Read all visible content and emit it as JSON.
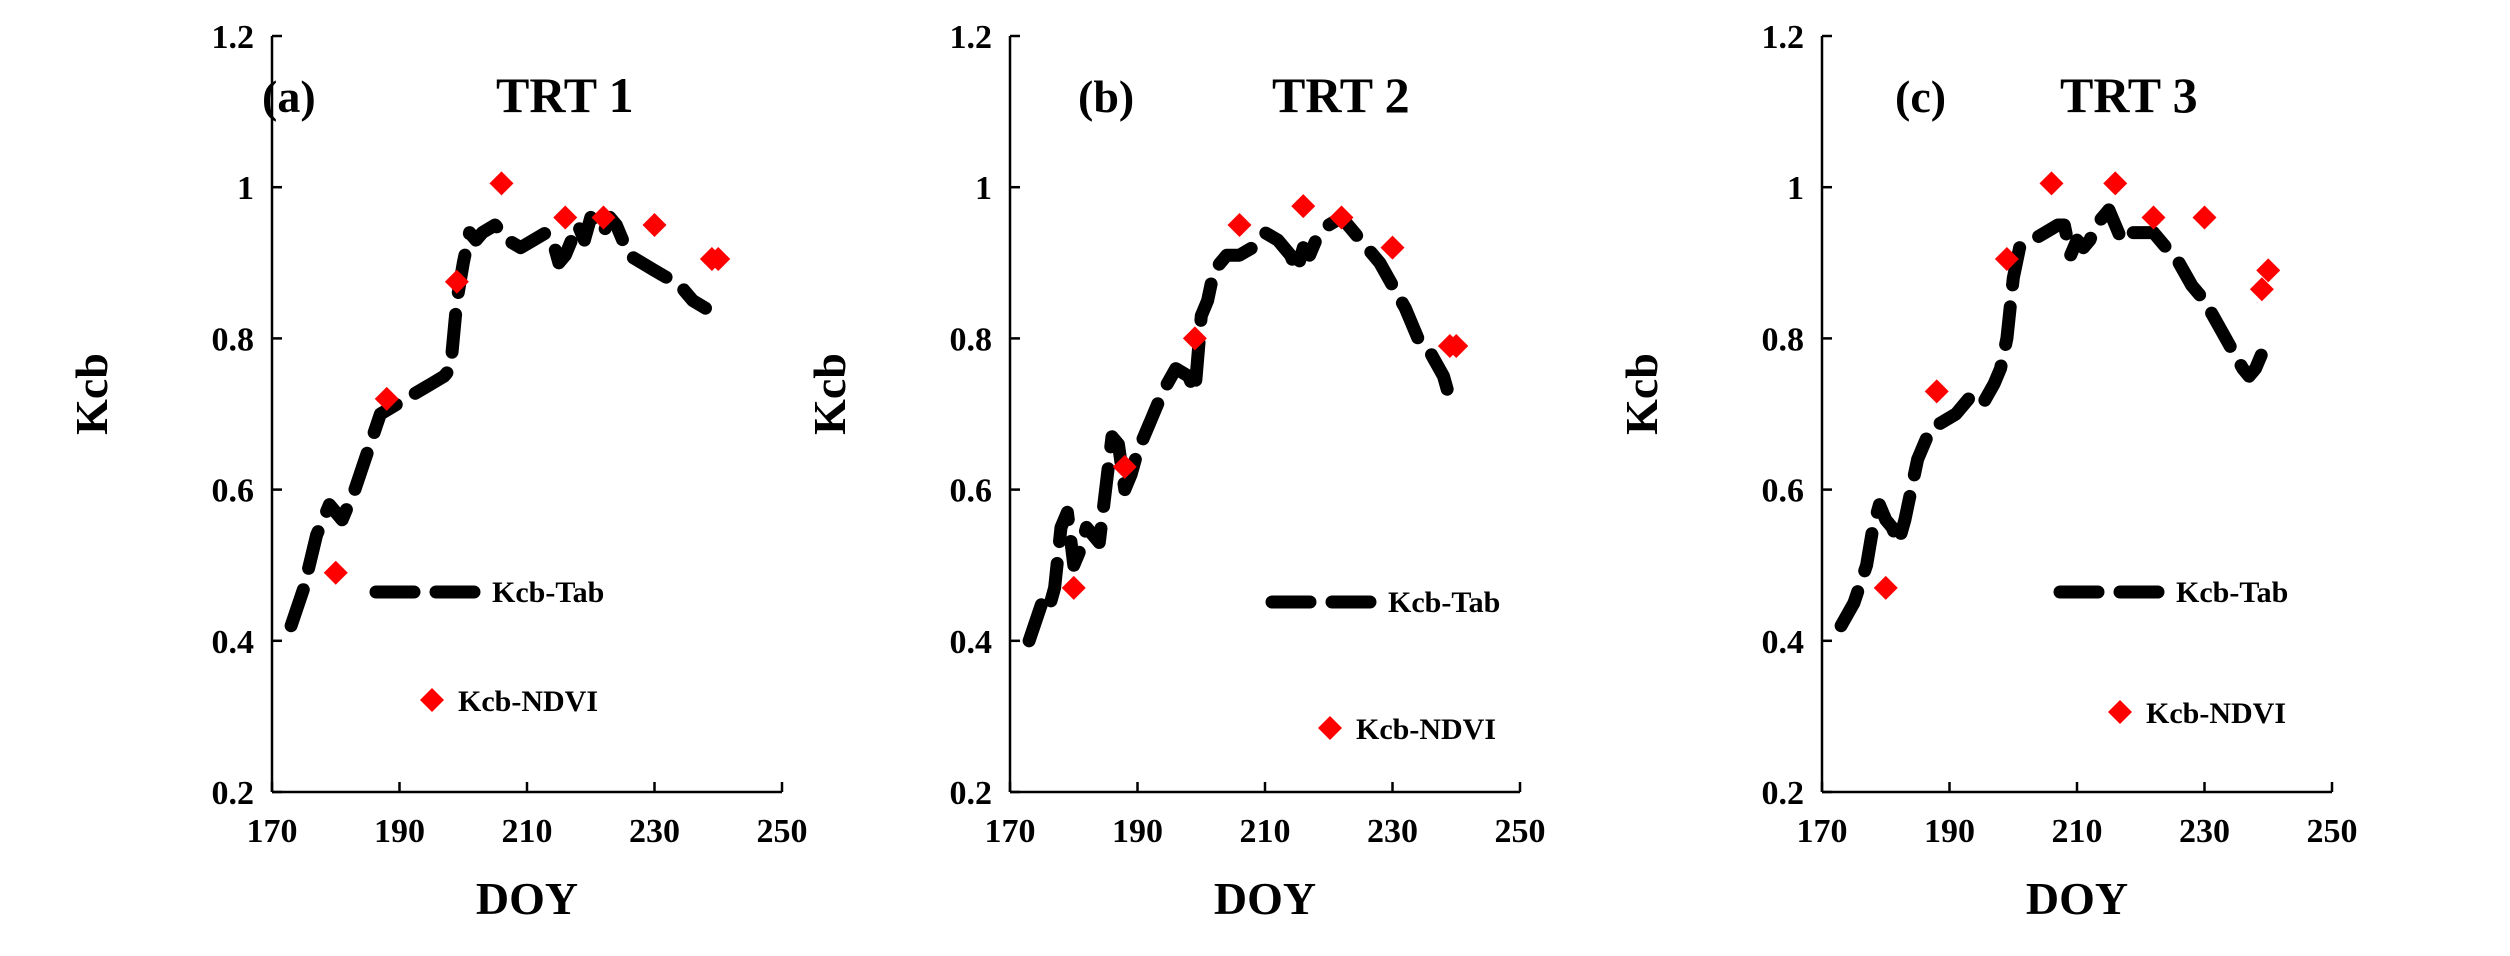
{
  "chart_data": [
    {
      "type": "line",
      "panel_label": "(a)",
      "title": "TRT 1",
      "xlabel": "DOY",
      "ylabel": "Kcb",
      "xlim": [
        170,
        250
      ],
      "ylim": [
        0.2,
        1.2
      ],
      "xticks": [
        170,
        190,
        210,
        230,
        250
      ],
      "yticks": [
        0.2,
        0.4,
        0.6,
        0.8,
        1.0,
        1.2
      ],
      "ytick_labels": [
        "0.2",
        "0.4",
        "0.6",
        "0.8",
        "1",
        "1.2"
      ],
      "series": [
        {
          "name": "Kcb-Tab",
          "style": "dashed-line",
          "color": "#000000",
          "x": [
            173,
            175,
            177,
            179,
            180,
            181,
            182,
            183,
            185,
            187,
            189,
            191,
            193,
            195,
            197,
            198,
            199,
            200,
            201,
            202,
            203,
            205,
            207,
            209,
            211,
            213,
            214,
            215,
            216,
            217,
            218,
            219,
            220,
            221,
            222,
            223,
            224,
            226,
            228,
            230,
            232,
            234,
            236,
            238
          ],
          "values": [
            0.42,
            0.47,
            0.54,
            0.58,
            0.57,
            0.56,
            0.58,
            0.6,
            0.65,
            0.7,
            0.71,
            0.72,
            0.73,
            0.74,
            0.75,
            0.76,
            0.85,
            0.9,
            0.94,
            0.93,
            0.94,
            0.95,
            0.93,
            0.92,
            0.93,
            0.94,
            0.93,
            0.9,
            0.91,
            0.93,
            0.95,
            0.93,
            0.96,
            0.95,
            0.94,
            0.96,
            0.95,
            0.91,
            0.9,
            0.89,
            0.88,
            0.87,
            0.85,
            0.84
          ]
        },
        {
          "name": "Kcb-NDVI",
          "style": "marker",
          "color": "#ff0000",
          "x": [
            180,
            188,
            199,
            206,
            216,
            222,
            230,
            239,
            240
          ],
          "values": [
            0.49,
            0.72,
            0.875,
            1.005,
            0.96,
            0.96,
            0.95,
            0.905,
            0.905
          ]
        }
      ]
    },
    {
      "type": "line",
      "panel_label": "(b)",
      "title": "TRT 2",
      "xlabel": "DOY",
      "ylabel": "Kcb",
      "xlim": [
        170,
        250
      ],
      "ylim": [
        0.2,
        1.2
      ],
      "xticks": [
        170,
        190,
        210,
        230,
        250
      ],
      "yticks": [
        0.2,
        0.4,
        0.6,
        0.8,
        1.0,
        1.2
      ],
      "ytick_labels": [
        "0.2",
        "0.4",
        "0.6",
        "0.8",
        "1",
        "1.2"
      ],
      "series": [
        {
          "name": "Kcb-Tab",
          "style": "dashed-line",
          "color": "#000000",
          "x": [
            173,
            175,
            176,
            177,
            178,
            179,
            180,
            181,
            182,
            183,
            184,
            185,
            186,
            187,
            188,
            189,
            190,
            192,
            194,
            196,
            198,
            199,
            200,
            201,
            202,
            204,
            206,
            208,
            210,
            212,
            214,
            215,
            216,
            217,
            218,
            220,
            222,
            224,
            226,
            228,
            230,
            232,
            234,
            236,
            238,
            239
          ],
          "values": [
            0.4,
            0.45,
            0.44,
            0.47,
            0.55,
            0.57,
            0.5,
            0.52,
            0.55,
            0.54,
            0.53,
            0.6,
            0.67,
            0.66,
            0.6,
            0.62,
            0.65,
            0.69,
            0.73,
            0.76,
            0.75,
            0.73,
            0.83,
            0.85,
            0.89,
            0.91,
            0.91,
            0.92,
            0.94,
            0.93,
            0.91,
            0.89,
            0.92,
            0.91,
            0.93,
            0.95,
            0.96,
            0.94,
            0.92,
            0.9,
            0.87,
            0.84,
            0.8,
            0.78,
            0.75,
            0.72
          ]
        },
        {
          "name": "Kcb-NDVI",
          "style": "marker",
          "color": "#ff0000",
          "x": [
            180,
            188,
            199,
            206,
            216,
            222,
            230,
            239,
            240
          ],
          "values": [
            0.47,
            0.63,
            0.8,
            0.95,
            0.975,
            0.96,
            0.92,
            0.79,
            0.79
          ]
        }
      ]
    },
    {
      "type": "line",
      "panel_label": "(c)",
      "title": "TRT 3",
      "xlabel": "DOY",
      "ylabel": "Kcb",
      "xlim": [
        170,
        250
      ],
      "ylim": [
        0.2,
        1.2
      ],
      "xticks": [
        170,
        190,
        210,
        230,
        250
      ],
      "yticks": [
        0.2,
        0.4,
        0.6,
        0.8,
        1.0,
        1.2
      ],
      "ytick_labels": [
        "0.2",
        "0.4",
        "0.6",
        "0.8",
        "1",
        "1.2"
      ],
      "series": [
        {
          "name": "Kcb-Tab",
          "style": "dashed-line",
          "color": "#000000",
          "x": [
            173,
            175,
            177,
            178,
            179,
            180,
            181,
            182,
            183,
            185,
            187,
            189,
            191,
            193,
            195,
            197,
            198,
            199,
            200,
            201,
            203,
            205,
            207,
            208,
            209,
            210,
            211,
            212,
            213,
            214,
            215,
            216,
            217,
            218,
            220,
            222,
            224,
            226,
            228,
            230,
            232,
            234,
            236,
            237,
            238,
            239
          ],
          "values": [
            0.42,
            0.45,
            0.5,
            0.55,
            0.58,
            0.56,
            0.55,
            0.53,
            0.56,
            0.64,
            0.68,
            0.69,
            0.7,
            0.72,
            0.71,
            0.74,
            0.76,
            0.8,
            0.88,
            0.92,
            0.93,
            0.94,
            0.95,
            0.95,
            0.91,
            0.93,
            0.92,
            0.93,
            0.95,
            0.96,
            0.97,
            0.95,
            0.93,
            0.94,
            0.94,
            0.94,
            0.92,
            0.9,
            0.87,
            0.85,
            0.82,
            0.79,
            0.76,
            0.75,
            0.76,
            0.78
          ]
        },
        {
          "name": "Kcb-NDVI",
          "style": "marker",
          "color": "#ff0000",
          "x": [
            180,
            188,
            199,
            206,
            216,
            222,
            230,
            239,
            240
          ],
          "values": [
            0.47,
            0.73,
            0.905,
            1.005,
            1.005,
            0.96,
            0.96,
            0.865,
            0.89
          ]
        }
      ]
    }
  ]
}
